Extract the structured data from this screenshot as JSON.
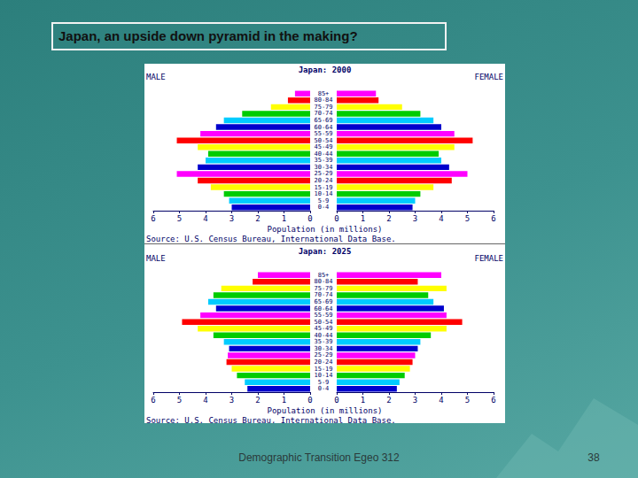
{
  "title": "Japan, an upside down pyramid in the making?",
  "footer": "Demographic Transition Egeo 312",
  "page_number": 38,
  "chart_data": [
    {
      "type": "bar",
      "orientation": "horizontal",
      "title": "Japan: 2000",
      "xlabel": "Population (in millions)",
      "source": "Source: U.S. Census Bureau, International Data Base.",
      "categories": [
        "0-4",
        "5-9",
        "10-14",
        "15-19",
        "20-24",
        "25-29",
        "30-34",
        "35-39",
        "40-44",
        "45-49",
        "50-54",
        "55-59",
        "60-64",
        "65-69",
        "70-74",
        "75-79",
        "80-84",
        "85+"
      ],
      "xlim": [
        0,
        6
      ],
      "xticks": [
        0,
        1,
        2,
        3,
        4,
        5,
        6
      ],
      "grid": false,
      "series": [
        {
          "name": "MALE",
          "values": [
            3.0,
            3.1,
            3.3,
            3.8,
            4.3,
            5.1,
            4.3,
            4.0,
            3.9,
            4.3,
            5.1,
            4.2,
            3.6,
            3.3,
            2.6,
            1.5,
            0.85,
            0.58
          ],
          "colors": [
            "#0000cc",
            "#00ccff",
            "#00cc00",
            "#ffff00",
            "#ff0000",
            "#ff00ff",
            "#0000cc",
            "#00ccff",
            "#00cc00",
            "#ffff00",
            "#ff0000",
            "#ff00ff",
            "#0000cc",
            "#00ccff",
            "#00cc00",
            "#ffff00",
            "#ff0000",
            "#ff00ff"
          ]
        },
        {
          "name": "FEMALE",
          "values": [
            2.9,
            3.0,
            3.2,
            3.7,
            4.4,
            5.0,
            4.3,
            4.0,
            3.9,
            4.5,
            5.2,
            4.5,
            4.0,
            3.7,
            3.2,
            2.5,
            1.6,
            1.5
          ],
          "colors": [
            "#0000cc",
            "#00ccff",
            "#00cc00",
            "#ffff00",
            "#ff0000",
            "#ff00ff",
            "#0000cc",
            "#00ccff",
            "#00cc00",
            "#ffff00",
            "#ff0000",
            "#ff00ff",
            "#0000cc",
            "#00ccff",
            "#00cc00",
            "#ffff00",
            "#ff0000",
            "#ff00ff"
          ]
        }
      ]
    },
    {
      "type": "bar",
      "orientation": "horizontal",
      "title": "Japan: 2025",
      "xlabel": "Population (in millions)",
      "source": "Source: U.S. Census Bureau, International Data Base.",
      "categories": [
        "0-4",
        "5-9",
        "10-14",
        "15-19",
        "20-24",
        "25-29",
        "30-34",
        "35-39",
        "40-44",
        "45-49",
        "50-54",
        "55-59",
        "60-64",
        "65-69",
        "70-74",
        "75-79",
        "80-84",
        "85+"
      ],
      "xlim": [
        0,
        6
      ],
      "xticks": [
        0,
        1,
        2,
        3,
        4,
        5,
        6
      ],
      "grid": false,
      "series": [
        {
          "name": "MALE",
          "values": [
            2.4,
            2.5,
            2.8,
            3.0,
            3.2,
            3.15,
            3.1,
            3.3,
            3.7,
            4.3,
            4.9,
            4.2,
            3.6,
            3.9,
            3.7,
            3.4,
            2.2,
            2.0
          ],
          "colors": [
            "#0000cc",
            "#00ccff",
            "#00cc00",
            "#ffff00",
            "#ff0000",
            "#ff00ff",
            "#0000cc",
            "#00ccff",
            "#00cc00",
            "#ffff00",
            "#ff0000",
            "#ff00ff",
            "#0000cc",
            "#00ccff",
            "#00cc00",
            "#ffff00",
            "#ff0000",
            "#ff00ff"
          ]
        },
        {
          "name": "FEMALE",
          "values": [
            2.3,
            2.4,
            2.6,
            2.8,
            2.9,
            3.0,
            3.1,
            3.2,
            3.6,
            4.2,
            4.8,
            4.2,
            4.1,
            3.7,
            3.5,
            4.2,
            3.1,
            4.0
          ],
          "colors": [
            "#0000cc",
            "#00ccff",
            "#00cc00",
            "#ffff00",
            "#ff0000",
            "#ff00ff",
            "#0000cc",
            "#00ccff",
            "#00cc00",
            "#ffff00",
            "#ff0000",
            "#ff00ff",
            "#0000cc",
            "#00ccff",
            "#00cc00",
            "#ffff00",
            "#ff0000",
            "#ff00ff"
          ]
        }
      ]
    }
  ]
}
